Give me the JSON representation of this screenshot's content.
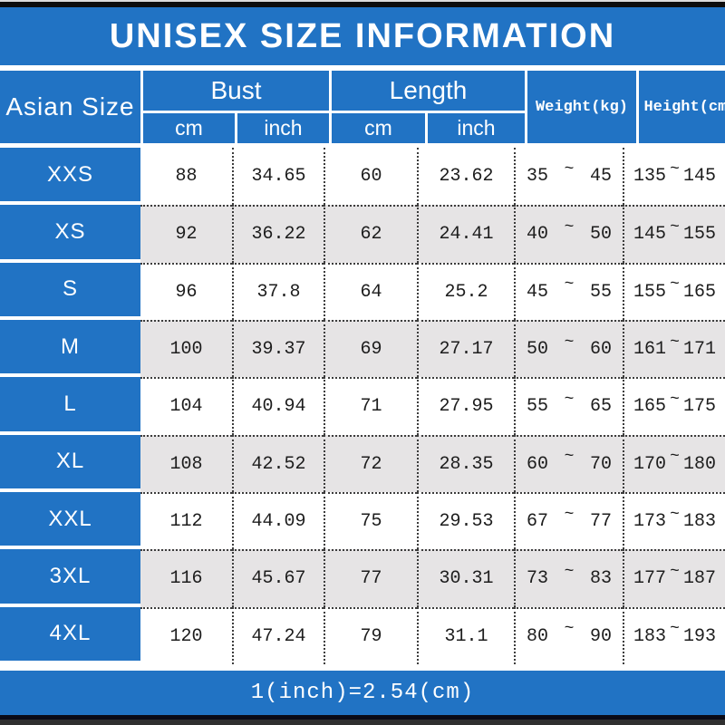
{
  "title": "UNISEX SIZE INFORMATION",
  "table": {
    "size_col_header": "Asian Size",
    "groups": [
      {
        "label": "Bust",
        "sub": [
          "cm",
          "inch"
        ]
      },
      {
        "label": "Length",
        "sub": [
          "cm",
          "inch"
        ]
      }
    ],
    "single_headers": [
      "Weight(kg)",
      "Height(cm)"
    ],
    "tilde": "~",
    "rows": [
      {
        "size": "XXS",
        "bust_cm": "88",
        "bust_inch": "34.65",
        "length_cm": "60",
        "length_inch": "23.62",
        "weight_min": "35",
        "weight_max": "45",
        "height_min": "135",
        "height_max": "145"
      },
      {
        "size": "XS",
        "bust_cm": "92",
        "bust_inch": "36.22",
        "length_cm": "62",
        "length_inch": "24.41",
        "weight_min": "40",
        "weight_max": "50",
        "height_min": "145",
        "height_max": "155"
      },
      {
        "size": "S",
        "bust_cm": "96",
        "bust_inch": "37.8",
        "length_cm": "64",
        "length_inch": "25.2",
        "weight_min": "45",
        "weight_max": "55",
        "height_min": "155",
        "height_max": "165"
      },
      {
        "size": "M",
        "bust_cm": "100",
        "bust_inch": "39.37",
        "length_cm": "69",
        "length_inch": "27.17",
        "weight_min": "50",
        "weight_max": "60",
        "height_min": "161",
        "height_max": "171"
      },
      {
        "size": "L",
        "bust_cm": "104",
        "bust_inch": "40.94",
        "length_cm": "71",
        "length_inch": "27.95",
        "weight_min": "55",
        "weight_max": "65",
        "height_min": "165",
        "height_max": "175"
      },
      {
        "size": "XL",
        "bust_cm": "108",
        "bust_inch": "42.52",
        "length_cm": "72",
        "length_inch": "28.35",
        "weight_min": "60",
        "weight_max": "70",
        "height_min": "170",
        "height_max": "180"
      },
      {
        "size": "XXL",
        "bust_cm": "112",
        "bust_inch": "44.09",
        "length_cm": "75",
        "length_inch": "29.53",
        "weight_min": "67",
        "weight_max": "77",
        "height_min": "173",
        "height_max": "183"
      },
      {
        "size": "3XL",
        "bust_cm": "116",
        "bust_inch": "45.67",
        "length_cm": "77",
        "length_inch": "30.31",
        "weight_min": "73",
        "weight_max": "83",
        "height_min": "177",
        "height_max": "187"
      },
      {
        "size": "4XL",
        "bust_cm": "120",
        "bust_inch": "47.24",
        "length_cm": "79",
        "length_inch": "31.1",
        "weight_min": "80",
        "weight_max": "90",
        "height_min": "183",
        "height_max": "193"
      }
    ]
  },
  "footer": "1(inch)=2.54(cm)",
  "colors": {
    "banner_blue": "#2173c4",
    "shaded_row": "#e6e4e5",
    "header_text": "#ffffff",
    "data_text": "#1d1d1d"
  }
}
